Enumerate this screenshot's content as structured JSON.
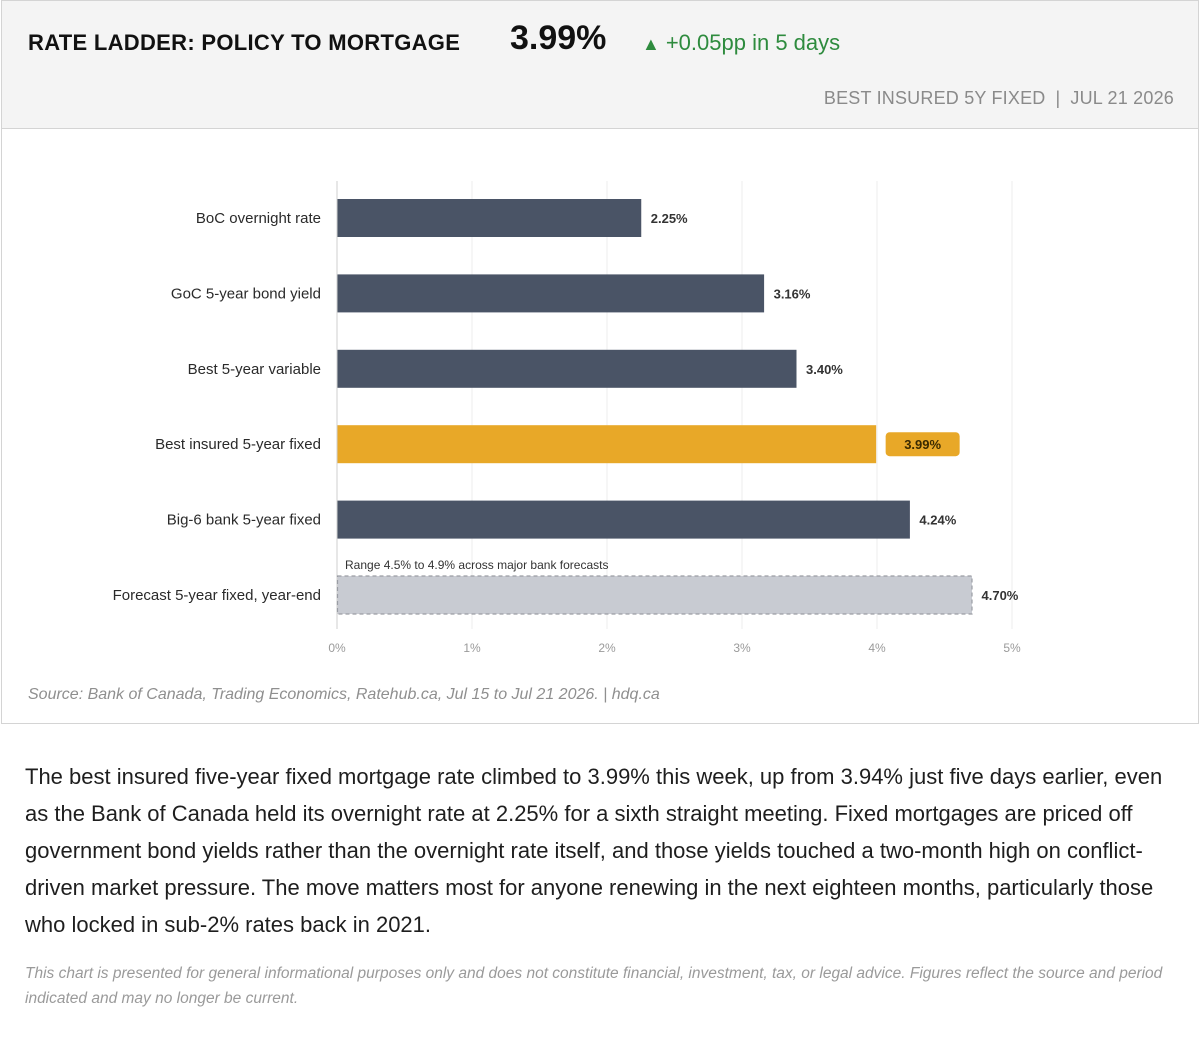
{
  "header": {
    "title": "RATE LADDER: POLICY TO MORTGAGE",
    "value": "3.99%",
    "change_arrow": "▲",
    "change_text": "+0.05pp in 5 days",
    "subtitle_left": "BEST INSURED 5Y FIXED",
    "subtitle_sep": "|",
    "subtitle_right": "JUL 21 2026"
  },
  "chart_data": {
    "type": "bar",
    "orientation": "horizontal",
    "categories": [
      "BoC overnight rate",
      "GoC 5-year bond yield",
      "Best 5-year variable",
      "Best insured 5-year fixed",
      "Big-6 bank 5-year fixed",
      "Forecast 5-year fixed, year-end"
    ],
    "values": [
      2.25,
      3.16,
      3.4,
      3.99,
      4.24,
      4.7
    ],
    "value_labels": [
      "2.25%",
      "3.16%",
      "3.40%",
      "3.99%",
      "4.24%",
      "4.70%"
    ],
    "highlight_index": 3,
    "forecast_index": 5,
    "annotation": "Range 4.5% to 4.9% across major bank forecasts",
    "xlim": [
      0,
      5
    ],
    "ticks": [
      0,
      1,
      2,
      3,
      4,
      5
    ],
    "tick_labels": [
      "0%",
      "1%",
      "2%",
      "3%",
      "4%",
      "5%"
    ],
    "grid": true,
    "colors": {
      "bar": "#4a5466",
      "highlight": "#e8a828",
      "forecast_fill": "#c8cbd2",
      "forecast_border": "#9a9da4",
      "grid": "#ececec"
    }
  },
  "source": "Source: Bank of Canada, Trading Economics, Ratehub.ca, Jul 15 to Jul 21 2026.  |  hdq.ca",
  "body_text": "The best insured five-year fixed mortgage rate climbed to 3.99% this week, up from 3.94% just five days earlier, even as the Bank of Canada held its overnight rate at 2.25% for a sixth straight meeting. Fixed mortgages are priced off government bond yields rather than the overnight rate itself, and those yields touched a two-month high on conflict-driven market pressure. The move matters most for anyone renewing in the next eighteen months, particularly those who locked in sub-2% rates back in 2021.",
  "disclaimer": "This chart is presented for general informational purposes only and does not constitute financial, investment, tax, or legal advice. Figures reflect the source and period indicated and may no longer be current."
}
